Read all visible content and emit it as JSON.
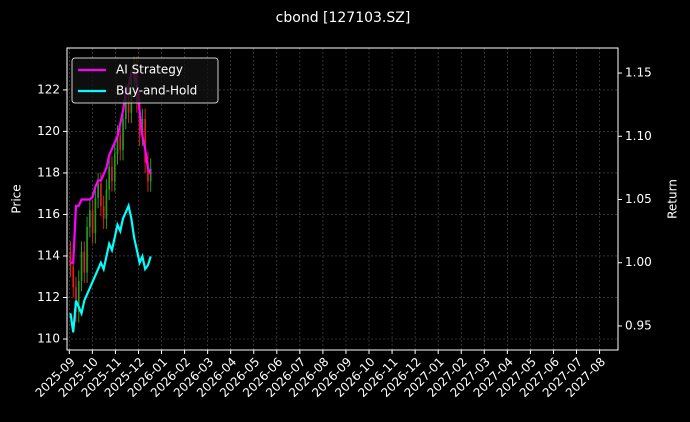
{
  "chart_data": {
    "type": "candlestick",
    "title": "cbond [127103.SZ]",
    "ylabel": "Price",
    "y2label": "Return",
    "x": [
      0.05,
      0.17,
      0.29,
      0.41,
      0.53,
      0.65,
      0.77,
      0.89,
      1.01,
      1.13,
      1.25,
      1.37,
      1.49,
      1.61,
      1.73,
      1.85,
      1.97,
      2.09,
      2.21,
      2.33,
      2.45,
      2.57,
      2.69,
      2.81,
      2.93,
      3.05,
      3.17,
      3.29,
      3.41,
      3.53
    ],
    "open": [
      114.2,
      113.5,
      112.5,
      111.3,
      112.8,
      114.2,
      113.2,
      115.4,
      116.2,
      115.1,
      116.8,
      117.5,
      116.4,
      115.8,
      117.2,
      118.3,
      117.6,
      118.9,
      119.8,
      119.1,
      120.6,
      121.8,
      120.9,
      122.5,
      123.1,
      121.4,
      119.8,
      120.6,
      118.5,
      117.6
    ],
    "high": [
      114.7,
      114.0,
      113.0,
      113.3,
      114.7,
      114.7,
      115.9,
      116.7,
      116.7,
      117.3,
      118.0,
      118.0,
      116.9,
      117.7,
      118.8,
      118.8,
      119.4,
      120.3,
      120.3,
      121.1,
      122.3,
      122.3,
      123.0,
      123.6,
      123.6,
      121.9,
      121.1,
      121.1,
      119.0,
      118.7
    ],
    "low": [
      113.0,
      112.0,
      110.8,
      110.8,
      112.3,
      112.7,
      112.7,
      114.9,
      114.6,
      114.6,
      116.3,
      115.9,
      115.3,
      115.3,
      116.7,
      117.1,
      117.1,
      118.4,
      118.6,
      118.6,
      120.1,
      120.4,
      120.4,
      122.0,
      120.9,
      119.3,
      119.3,
      118.0,
      117.1,
      117.1
    ],
    "close": [
      113.5,
      112.5,
      111.3,
      112.8,
      114.2,
      113.2,
      115.4,
      116.2,
      115.1,
      116.8,
      117.5,
      116.4,
      115.8,
      117.2,
      118.3,
      117.6,
      118.9,
      119.8,
      119.1,
      120.6,
      121.8,
      120.9,
      122.5,
      123.1,
      121.4,
      119.8,
      120.6,
      118.5,
      117.6,
      118.2
    ],
    "up_color": "#1f9e1f",
    "down_color": "#e0201a",
    "series": [
      {
        "name": "AI Strategy",
        "color": "#ff00ff",
        "axis": "y2",
        "values": [
          1.0,
          1.0,
          1.045,
          1.045,
          1.05,
          1.05,
          1.05,
          1.05,
          1.052,
          1.06,
          1.065,
          1.065,
          1.07,
          1.075,
          1.085,
          1.09,
          1.095,
          1.1,
          1.11,
          1.12,
          1.135,
          1.14,
          1.15,
          1.15,
          1.14,
          1.12,
          1.1,
          1.09,
          1.075,
          1.07
        ]
      },
      {
        "name": "Buy-and-Hold",
        "color": "#00ffff",
        "axis": "y2",
        "values": [
          0.96,
          0.945,
          0.97,
          0.965,
          0.96,
          0.97,
          0.975,
          0.98,
          0.985,
          0.99,
          0.995,
          1.0,
          0.995,
          1.005,
          1.015,
          1.01,
          1.02,
          1.03,
          1.025,
          1.035,
          1.04,
          1.045,
          1.035,
          1.02,
          1.01,
          1.0,
          1.005,
          0.995,
          0.998,
          1.005
        ]
      }
    ],
    "xlim": [
      -0.1,
      23.8
    ],
    "xticks": [
      {
        "value": 0,
        "label": "2025-09"
      },
      {
        "value": 1,
        "label": "2025-10"
      },
      {
        "value": 2,
        "label": "2025-11"
      },
      {
        "value": 3,
        "label": "2025-12"
      },
      {
        "value": 4,
        "label": "2026-01"
      },
      {
        "value": 5,
        "label": "2026-02"
      },
      {
        "value": 6,
        "label": "2026-03"
      },
      {
        "value": 7,
        "label": "2026-04"
      },
      {
        "value": 8,
        "label": "2026-05"
      },
      {
        "value": 9,
        "label": "2026-06"
      },
      {
        "value": 10,
        "label": "2026-07"
      },
      {
        "value": 11,
        "label": "2026-08"
      },
      {
        "value": 12,
        "label": "2026-09"
      },
      {
        "value": 13,
        "label": "2026-10"
      },
      {
        "value": 14,
        "label": "2026-11"
      },
      {
        "value": 15,
        "label": "2026-12"
      },
      {
        "value": 16,
        "label": "2027-01"
      },
      {
        "value": 17,
        "label": "2027-02"
      },
      {
        "value": 18,
        "label": "2027-03"
      },
      {
        "value": 19,
        "label": "2027-04"
      },
      {
        "value": 20,
        "label": "2027-05"
      },
      {
        "value": 21,
        "label": "2027-06"
      },
      {
        "value": 22,
        "label": "2027-07"
      },
      {
        "value": 23,
        "label": "2027-08"
      }
    ],
    "ylim": [
      109.47,
      124.02
    ],
    "yticks": [
      110,
      112,
      114,
      116,
      118,
      120,
      122
    ],
    "y2lim": [
      0.931,
      1.1698
    ],
    "y2ticks": [
      0.95,
      {
        "value": 1.0,
        "label": "1.00"
      },
      1.05,
      {
        "value": 1.1,
        "label": "1.10"
      },
      1.15
    ],
    "grid": true,
    "legend": "upper left"
  }
}
